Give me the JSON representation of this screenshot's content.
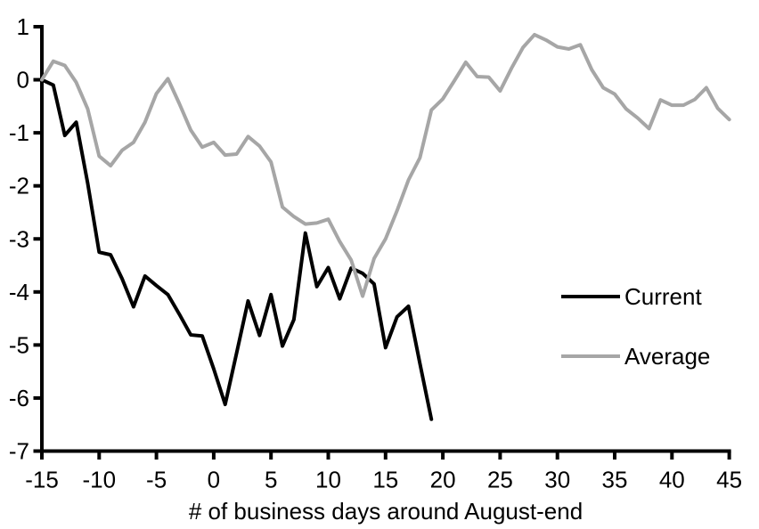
{
  "chart_data": {
    "type": "line",
    "title": "",
    "xlabel": "# of business days around August-end",
    "ylabel": "",
    "xlim": [
      -15,
      45
    ],
    "ylim": [
      -7,
      1
    ],
    "xticks": [
      -15,
      -10,
      -5,
      0,
      5,
      10,
      15,
      20,
      25,
      30,
      35,
      40,
      45
    ],
    "yticks": [
      1,
      0,
      -1,
      -2,
      -3,
      -4,
      -5,
      -6,
      -7
    ],
    "grid": false,
    "legend_position": "inside-right",
    "background_color": "#ffffff",
    "axis_color": "#000000",
    "series": [
      {
        "name": "Current",
        "color": "#000000",
        "x_start": -15,
        "x_step": 1,
        "values": [
          0.0,
          -0.1,
          -1.05,
          -0.8,
          -1.95,
          -3.25,
          -3.3,
          -3.75,
          -4.28,
          -3.7,
          -3.88,
          -4.05,
          -4.42,
          -4.81,
          -4.83,
          -5.45,
          -6.12,
          -5.15,
          -4.17,
          -4.82,
          -4.05,
          -5.02,
          -4.52,
          -2.89,
          -3.9,
          -3.54,
          -4.13,
          -3.55,
          -3.65,
          -3.85,
          -5.05,
          -4.47,
          -4.27,
          -5.35,
          -6.4
        ]
      },
      {
        "name": "Average",
        "color": "#a6a6a6",
        "x_start": -15,
        "x_step": 1,
        "values": [
          0.0,
          0.35,
          0.27,
          -0.05,
          -0.55,
          -1.44,
          -1.62,
          -1.33,
          -1.18,
          -0.8,
          -0.26,
          0.02,
          -0.45,
          -0.95,
          -1.27,
          -1.18,
          -1.42,
          -1.4,
          -1.07,
          -1.25,
          -1.55,
          -2.4,
          -2.58,
          -2.72,
          -2.7,
          -2.63,
          -3.05,
          -3.4,
          -4.08,
          -3.37,
          -3.0,
          -2.47,
          -1.89,
          -1.47,
          -0.57,
          -0.36,
          -0.02,
          0.33,
          0.06,
          0.05,
          -0.21,
          0.22,
          0.61,
          0.85,
          0.75,
          0.62,
          0.58,
          0.66,
          0.19,
          -0.15,
          -0.27,
          -0.55,
          -0.72,
          -0.92,
          -0.38,
          -0.48,
          -0.48,
          -0.37,
          -0.15,
          -0.54,
          -0.75
        ]
      }
    ]
  }
}
